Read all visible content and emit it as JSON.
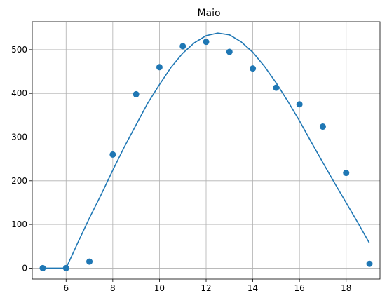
{
  "chart_data": {
    "type": "scatter",
    "title": "Maio",
    "xlabel": "",
    "ylabel": "",
    "xlim": [
      4.55,
      19.45
    ],
    "ylim": [
      -25,
      564
    ],
    "grid": true,
    "xticks": [
      6,
      8,
      10,
      12,
      14,
      16,
      18
    ],
    "yticks": [
      0,
      100,
      200,
      300,
      400,
      500
    ],
    "point_color": "#1f77b4",
    "line_color": "#1f77b4",
    "series": [
      {
        "kind": "points",
        "x": [
          5,
          6,
          7,
          8,
          9,
          10,
          11,
          12,
          13,
          14,
          15,
          16,
          17,
          18,
          19
        ],
        "y": [
          0,
          0,
          15,
          260,
          398,
          460,
          508,
          518,
          495,
          457,
          413,
          375,
          324,
          218,
          10
        ]
      },
      {
        "kind": "fit-line",
        "x": [
          5,
          6,
          6.5,
          7,
          7.5,
          8,
          8.5,
          9,
          9.5,
          10,
          10.5,
          11,
          11.5,
          12,
          12.5,
          13,
          13.5,
          14,
          14.5,
          15,
          15.5,
          16,
          16.5,
          17,
          17.5,
          18,
          18.5,
          19
        ],
        "y": [
          0,
          0,
          58,
          115,
          168,
          224,
          278,
          328,
          378,
          420,
          460,
          492,
          516,
          532,
          538,
          534,
          518,
          494,
          462,
          424,
          382,
          337,
          289,
          242,
          195,
          150,
          104,
          57
        ]
      }
    ]
  }
}
